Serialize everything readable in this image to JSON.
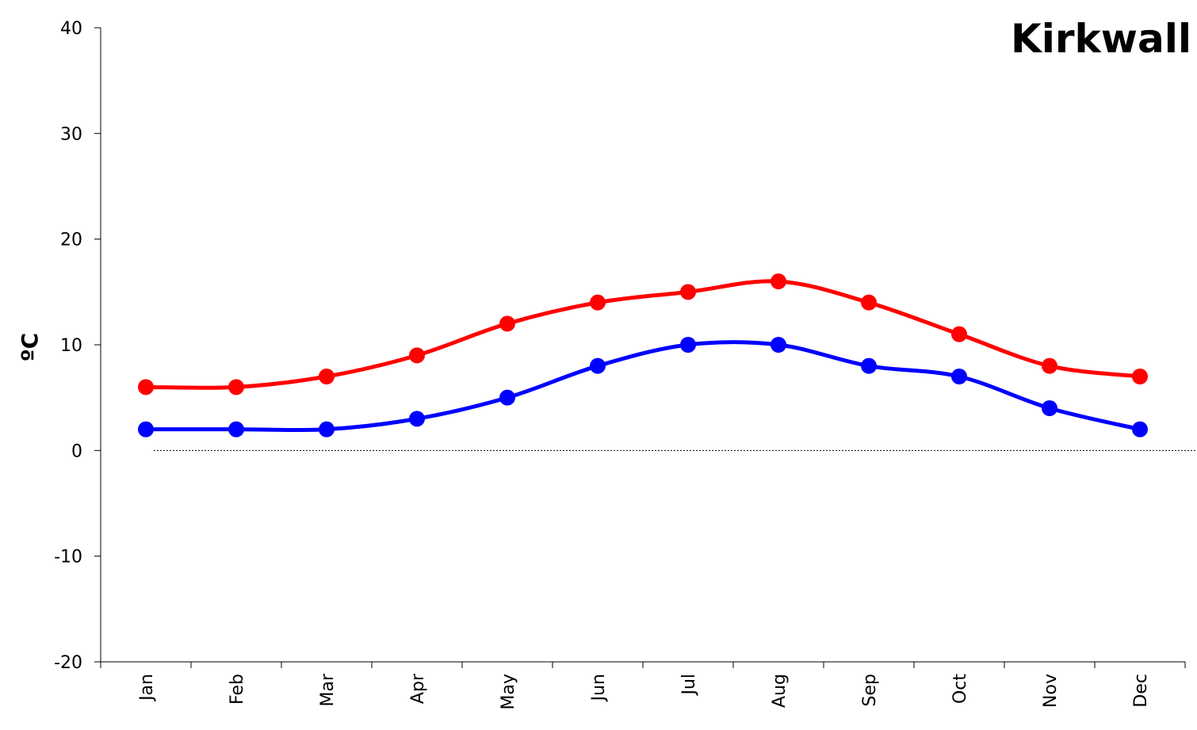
{
  "chart_data": {
    "type": "line",
    "title": "Kirkwall",
    "ylabel": "ºC",
    "xlabel": "",
    "categories": [
      "Jan",
      "Feb",
      "Mar",
      "Apr",
      "May",
      "Jun",
      "Jul",
      "Aug",
      "Sep",
      "Oct",
      "Nov",
      "Dec"
    ],
    "ylim": [
      -20,
      40
    ],
    "yticks": [
      -20,
      -10,
      0,
      10,
      20,
      30,
      40
    ],
    "grid": false,
    "legend": "none",
    "zero_line": "dotted",
    "series": [
      {
        "color": "#ff0000",
        "values": [
          6,
          6,
          7,
          9,
          12,
          14,
          15,
          16,
          14,
          11,
          8,
          7
        ]
      },
      {
        "color": "#0000ff",
        "values": [
          2,
          2,
          2,
          3,
          5,
          8,
          10,
          10,
          8,
          7,
          4,
          2
        ]
      }
    ]
  }
}
